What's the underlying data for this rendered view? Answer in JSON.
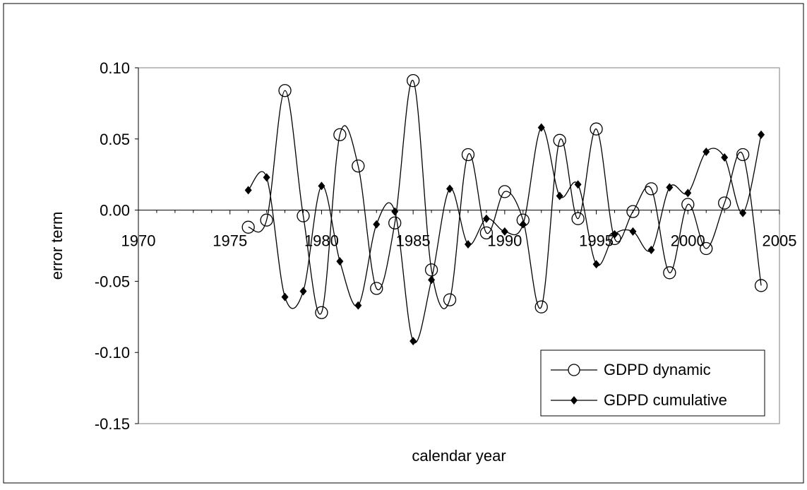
{
  "chart_data": {
    "type": "line",
    "title": "",
    "xlabel": "calendar year",
    "ylabel": "error term",
    "xlim": [
      1970,
      2005
    ],
    "ylim": [
      -0.15,
      0.1
    ],
    "x_ticks": [
      "1970",
      "1975",
      "1980",
      "1985",
      "1990",
      "1995",
      "2000",
      "2005"
    ],
    "y_ticks": [
      "0.10",
      "0.05",
      "0.00",
      "-0.05",
      "-0.10",
      "-0.15"
    ],
    "smoothed": true,
    "grid": false,
    "legend_position": "bottom-right",
    "series": [
      {
        "name": "GDPD dynamic",
        "marker": "open-circle",
        "x": [
          1976,
          1977,
          1978,
          1979,
          1980,
          1981,
          1982,
          1983,
          1984,
          1985,
          1986,
          1987,
          1988,
          1989,
          1990,
          1991,
          1992,
          1993,
          1994,
          1995,
          1996,
          1997,
          1998,
          1999,
          2000,
          2001,
          2002,
          2003,
          2004
        ],
        "y": [
          -0.012,
          -0.007,
          0.084,
          -0.004,
          -0.072,
          0.053,
          0.031,
          -0.055,
          -0.009,
          0.091,
          -0.042,
          -0.063,
          0.039,
          -0.016,
          0.013,
          -0.007,
          -0.068,
          0.049,
          -0.006,
          0.057,
          -0.02,
          -0.001,
          0.015,
          -0.044,
          0.004,
          -0.027,
          0.005,
          0.039,
          -0.053
        ]
      },
      {
        "name": "GDPD cumulative",
        "marker": "filled-diamond",
        "x": [
          1976,
          1977,
          1978,
          1979,
          1980,
          1981,
          1982,
          1983,
          1984,
          1985,
          1986,
          1987,
          1988,
          1989,
          1990,
          1991,
          1992,
          1993,
          1994,
          1995,
          1996,
          1997,
          1998,
          1999,
          2000,
          2001,
          2002,
          2003,
          2004
        ],
        "y": [
          0.014,
          0.023,
          -0.061,
          -0.057,
          0.017,
          -0.036,
          -0.067,
          -0.01,
          -0.001,
          -0.092,
          -0.049,
          0.015,
          -0.024,
          -0.006,
          -0.015,
          -0.01,
          0.058,
          0.01,
          0.018,
          -0.038,
          -0.017,
          -0.015,
          -0.028,
          0.016,
          0.012,
          0.041,
          0.037,
          -0.002,
          0.053
        ]
      }
    ]
  }
}
